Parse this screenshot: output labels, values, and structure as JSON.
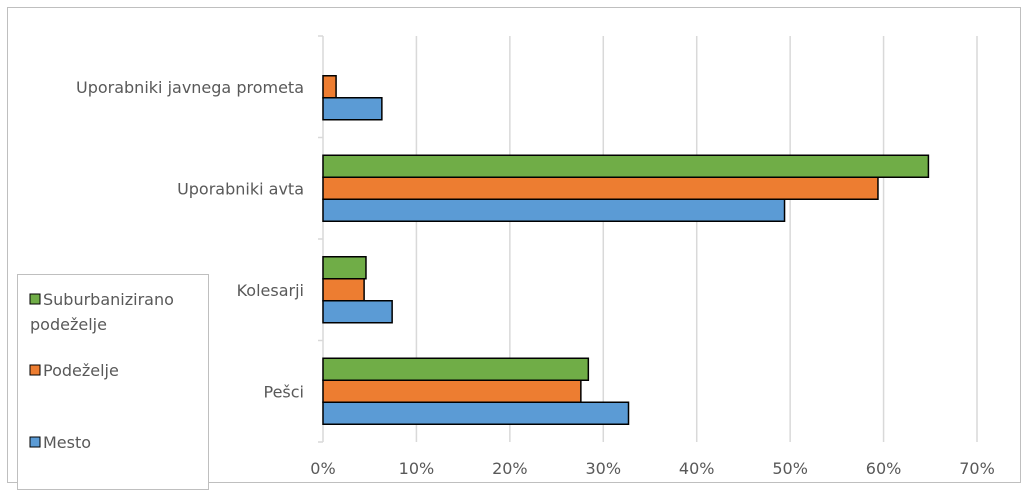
{
  "chart_data": {
    "type": "bar",
    "orientation": "horizontal",
    "categories": [
      "Uporabniki javnega prometa",
      "Uporabniki avta",
      "Kolesarji",
      "Pešci"
    ],
    "series": [
      {
        "name": "Suburbanizirano podeželje",
        "color": "#70ad47",
        "values": [
          null,
          64.8,
          4.6,
          28.4
        ]
      },
      {
        "name": "Podeželje",
        "color": "#ed7d31",
        "values": [
          1.4,
          59.4,
          4.4,
          27.6
        ]
      },
      {
        "name": "Mesto",
        "color": "#5b9bd5",
        "values": [
          6.3,
          49.4,
          7.4,
          32.7
        ]
      }
    ],
    "legend_labels": {
      "suburban_line1": "Suburbanizirano",
      "suburban_line2": "podeželje",
      "rural": "Podeželje",
      "city": "Mesto"
    },
    "xlim": [
      0,
      70
    ],
    "xticks": [
      "0%",
      "10%",
      "20%",
      "30%",
      "40%",
      "50%",
      "60%",
      "70%"
    ],
    "grid": true,
    "legend_position": "left"
  }
}
